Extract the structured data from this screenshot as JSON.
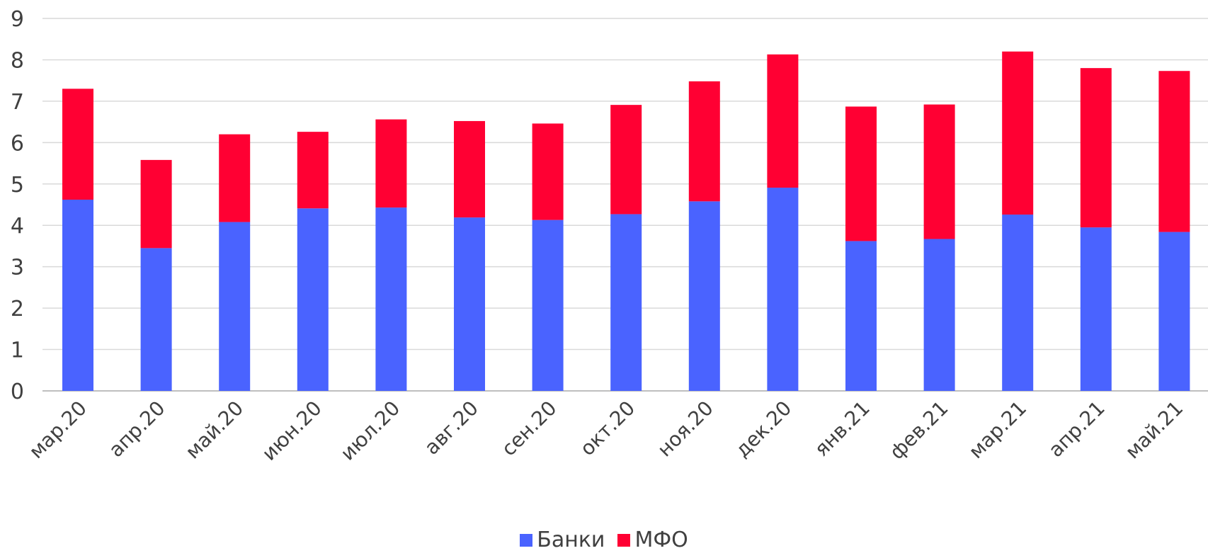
{
  "chart_data": {
    "type": "bar",
    "stacked": true,
    "categories": [
      "мар.20",
      "апр.20",
      "май.20",
      "июн.20",
      "июл.20",
      "авг.20",
      "сен.20",
      "окт.20",
      "ноя.20",
      "дек.20",
      "янв.21",
      "фев.21",
      "мар.21",
      "апр.21",
      "май.21"
    ],
    "series": [
      {
        "name": "Банки",
        "color": "#4A63FF",
        "values": [
          4.62,
          3.45,
          4.08,
          4.41,
          4.43,
          4.19,
          4.13,
          4.27,
          4.58,
          4.91,
          3.62,
          3.67,
          4.26,
          3.95,
          3.84
        ]
      },
      {
        "name": "МФО",
        "color": "#FF0033",
        "values": [
          2.68,
          2.13,
          2.12,
          1.85,
          2.13,
          2.33,
          2.33,
          2.64,
          2.9,
          3.22,
          3.25,
          3.25,
          3.94,
          3.85,
          3.89
        ]
      }
    ],
    "title": "",
    "xlabel": "",
    "ylabel": "",
    "ylim": [
      0,
      9
    ],
    "yticks": [
      "0",
      "1",
      "2",
      "3",
      "4",
      "5",
      "6",
      "7",
      "8",
      "9"
    ],
    "grid": true,
    "legend_position": "bottom"
  }
}
